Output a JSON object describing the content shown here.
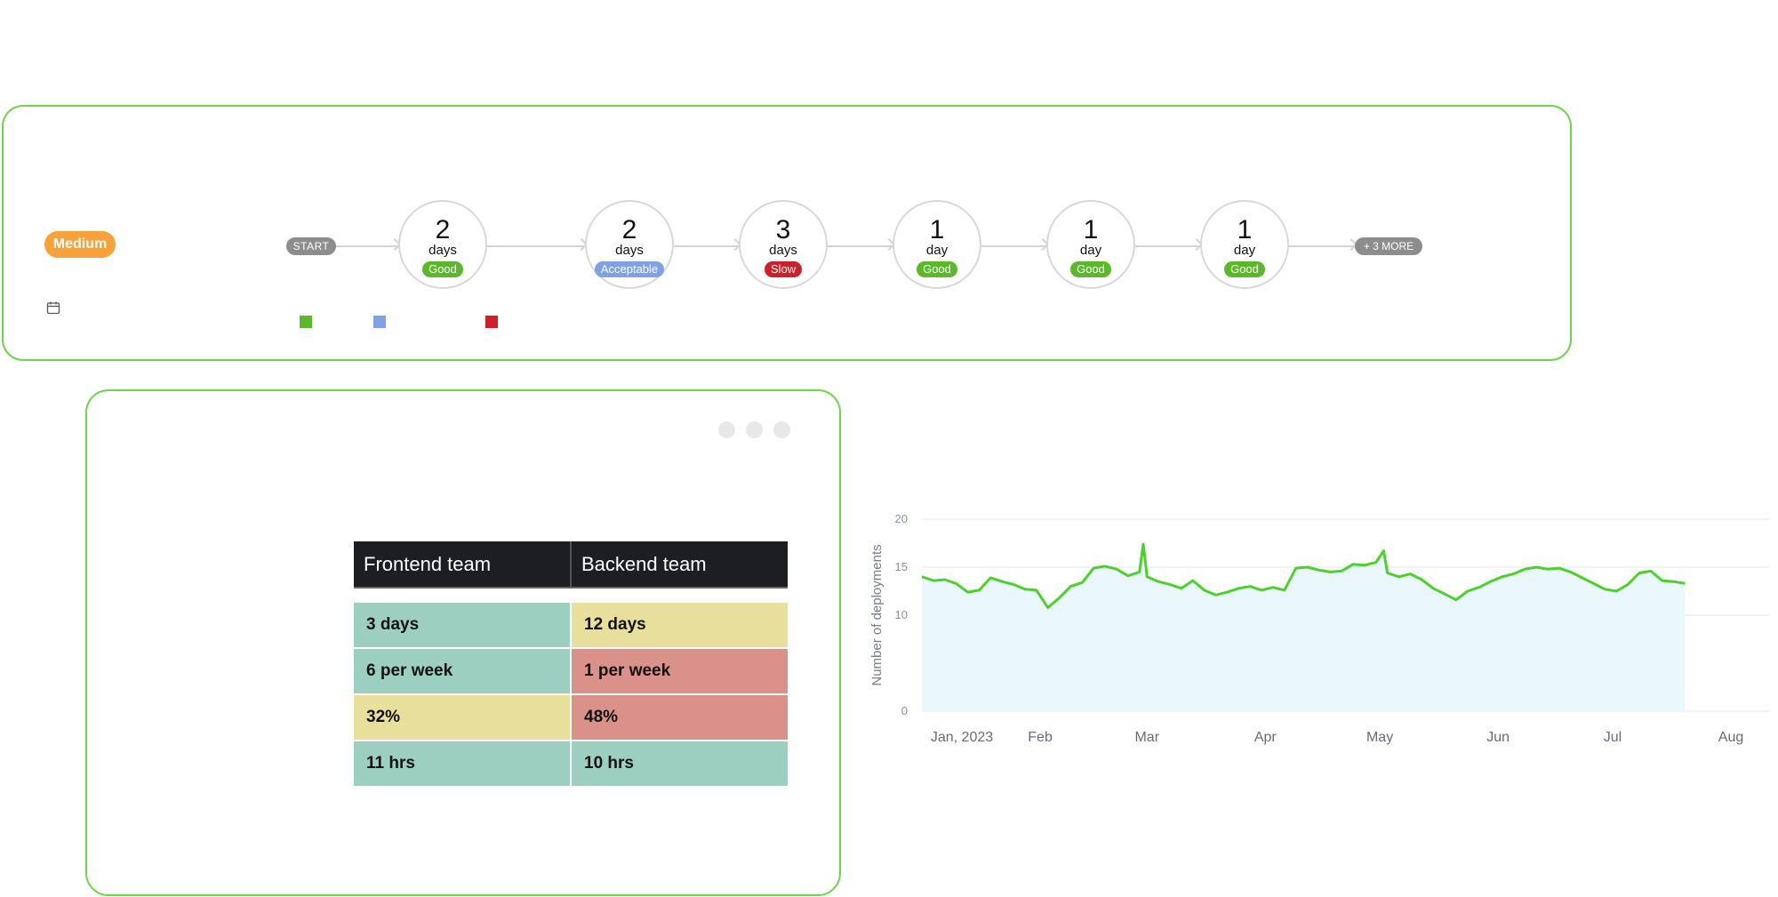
{
  "pipeline": {
    "priority_label": "Medium",
    "start_label": "START",
    "more_label": "+ 3 MORE",
    "stages": [
      {
        "value": "2",
        "unit": "days",
        "rating": "Good",
        "color": "#5bb82a"
      },
      {
        "value": "2",
        "unit": "days",
        "rating": "Acceptable",
        "color": "#7ea2e3"
      },
      {
        "value": "3",
        "unit": "days",
        "rating": "Slow",
        "color": "#cf1f2b"
      },
      {
        "value": "1",
        "unit": "day",
        "rating": "Good",
        "color": "#5bb82a"
      },
      {
        "value": "1",
        "unit": "day",
        "rating": "Good",
        "color": "#5bb82a"
      },
      {
        "value": "1",
        "unit": "day",
        "rating": "Good",
        "color": "#5bb82a"
      }
    ],
    "legend_colors": [
      "#5bb82a",
      "#7ea2e3",
      "#cf1f2b"
    ]
  },
  "comparison_table": {
    "headers": [
      "Frontend team",
      "Backend team"
    ],
    "rows": [
      [
        {
          "text": "3 days",
          "tone": "green"
        },
        {
          "text": "12 days",
          "tone": "yellow"
        }
      ],
      [
        {
          "text": "6 per week",
          "tone": "green"
        },
        {
          "text": "1 per week",
          "tone": "red"
        }
      ],
      [
        {
          "text": "32%",
          "tone": "yellow"
        },
        {
          "text": "48%",
          "tone": "red"
        }
      ],
      [
        {
          "text": "11 hrs",
          "tone": "green"
        },
        {
          "text": "10 hrs",
          "tone": "green"
        }
      ]
    ]
  },
  "chart_data": {
    "type": "area",
    "title": "",
    "xlabel": "",
    "ylabel": "Number of deployments",
    "ylim": [
      0,
      20
    ],
    "yticks": [
      0,
      10,
      15,
      20
    ],
    "xticks": [
      "Jan, 2023",
      "Feb",
      "Mar",
      "Apr",
      "May",
      "Jun",
      "Jul",
      "Aug"
    ],
    "grid": true,
    "line_color": "#4cd12a",
    "fill_color": "#eaf8fd",
    "series": [
      {
        "x": [
          "2023-01-01",
          "2023-01-04",
          "2023-01-07",
          "2023-01-10",
          "2023-01-13",
          "2023-01-16",
          "2023-01-19",
          "2023-01-22",
          "2023-01-25",
          "2023-01-28",
          "2023-01-31",
          "2023-02-03",
          "2023-02-06",
          "2023-02-09",
          "2023-02-12",
          "2023-02-15",
          "2023-02-18",
          "2023-02-21",
          "2023-02-24",
          "2023-02-27",
          "2023-02-28",
          "2023-03-01",
          "2023-03-04",
          "2023-03-07",
          "2023-03-10",
          "2023-03-13",
          "2023-03-16",
          "2023-03-19",
          "2023-03-22",
          "2023-03-25",
          "2023-03-28",
          "2023-03-31",
          "2023-04-03",
          "2023-04-06",
          "2023-04-09",
          "2023-04-12",
          "2023-04-15",
          "2023-04-18",
          "2023-04-21",
          "2023-04-24",
          "2023-04-27",
          "2023-04-30",
          "2023-05-02",
          "2023-05-03",
          "2023-05-06",
          "2023-05-09",
          "2023-05-12",
          "2023-05-15",
          "2023-05-18",
          "2023-05-21",
          "2023-05-24",
          "2023-05-27",
          "2023-05-30",
          "2023-06-02",
          "2023-06-05",
          "2023-06-08",
          "2023-06-11",
          "2023-06-14",
          "2023-06-17",
          "2023-06-20",
          "2023-06-23",
          "2023-06-26",
          "2023-06-29",
          "2023-07-02",
          "2023-07-05",
          "2023-07-08",
          "2023-07-11",
          "2023-07-14",
          "2023-07-17",
          "2023-07-20"
        ],
        "values": [
          14,
          13.6,
          13.7,
          13.3,
          12.4,
          12.6,
          13.9,
          13.5,
          13.2,
          12.7,
          12.6,
          10.8,
          11.8,
          13.0,
          13.4,
          14.9,
          15.1,
          14.8,
          14.1,
          14.5,
          17.4,
          14.0,
          13.5,
          13.2,
          12.8,
          13.6,
          12.6,
          12.1,
          12.4,
          12.8,
          13.0,
          12.6,
          12.9,
          12.6,
          14.9,
          15.0,
          14.7,
          14.5,
          14.6,
          15.3,
          15.2,
          15.5,
          16.7,
          14.4,
          14.0,
          14.3,
          13.7,
          12.8,
          12.2,
          11.6,
          12.5,
          12.9,
          13.5,
          14.0,
          14.3,
          14.8,
          15.0,
          14.8,
          14.9,
          14.5,
          13.9,
          13.3,
          12.7,
          12.5,
          13.2,
          14.4,
          14.6,
          13.6,
          13.5,
          13.3
        ]
      }
    ]
  }
}
